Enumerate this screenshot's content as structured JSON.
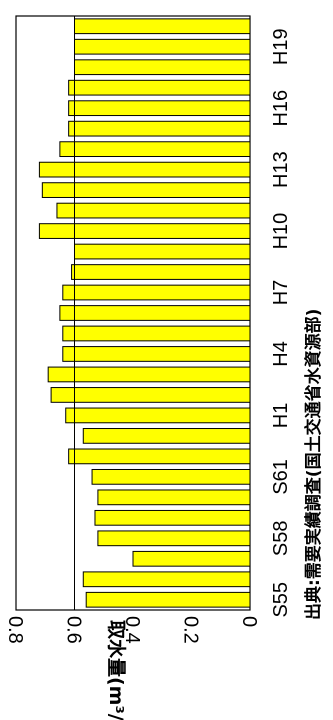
{
  "chart_data": {
    "type": "bar",
    "orientation": "rotated-90-clockwise",
    "categories": [
      "S55",
      "S56",
      "S57",
      "S58",
      "S59",
      "S60",
      "S61",
      "S62",
      "S63",
      "H1",
      "H2",
      "H3",
      "H4",
      "H5",
      "H6",
      "H7",
      "H8",
      "H9",
      "H10",
      "H11",
      "H12",
      "H13",
      "H14",
      "H15",
      "H16",
      "H17",
      "H18",
      "H19",
      "H20"
    ],
    "category_tick_labels": [
      "S55",
      "S58",
      "S61",
      "H1",
      "H4",
      "H7",
      "H10",
      "H13",
      "H16",
      "H19"
    ],
    "values": [
      0.56,
      0.57,
      0.4,
      0.52,
      0.53,
      0.52,
      0.54,
      0.62,
      0.57,
      0.63,
      0.68,
      0.69,
      0.64,
      0.64,
      0.65,
      0.64,
      0.61,
      0.6,
      0.72,
      0.66,
      0.71,
      0.72,
      0.65,
      0.62,
      0.62,
      0.62,
      0.6,
      0.6,
      0.6
    ],
    "reference_line": 0.6,
    "ylabel": "取水量(m³/s)",
    "ylim": [
      0,
      0.8
    ],
    "yticks": [
      "0",
      "0.2",
      "0.4",
      "0.6",
      "0.8"
    ],
    "source_note": "出典:需要実績調査(国土交通省水資源部)",
    "colors": {
      "bar_fill": "#ffff00",
      "bar_stroke": "#000000",
      "axis": "#000000"
    }
  }
}
